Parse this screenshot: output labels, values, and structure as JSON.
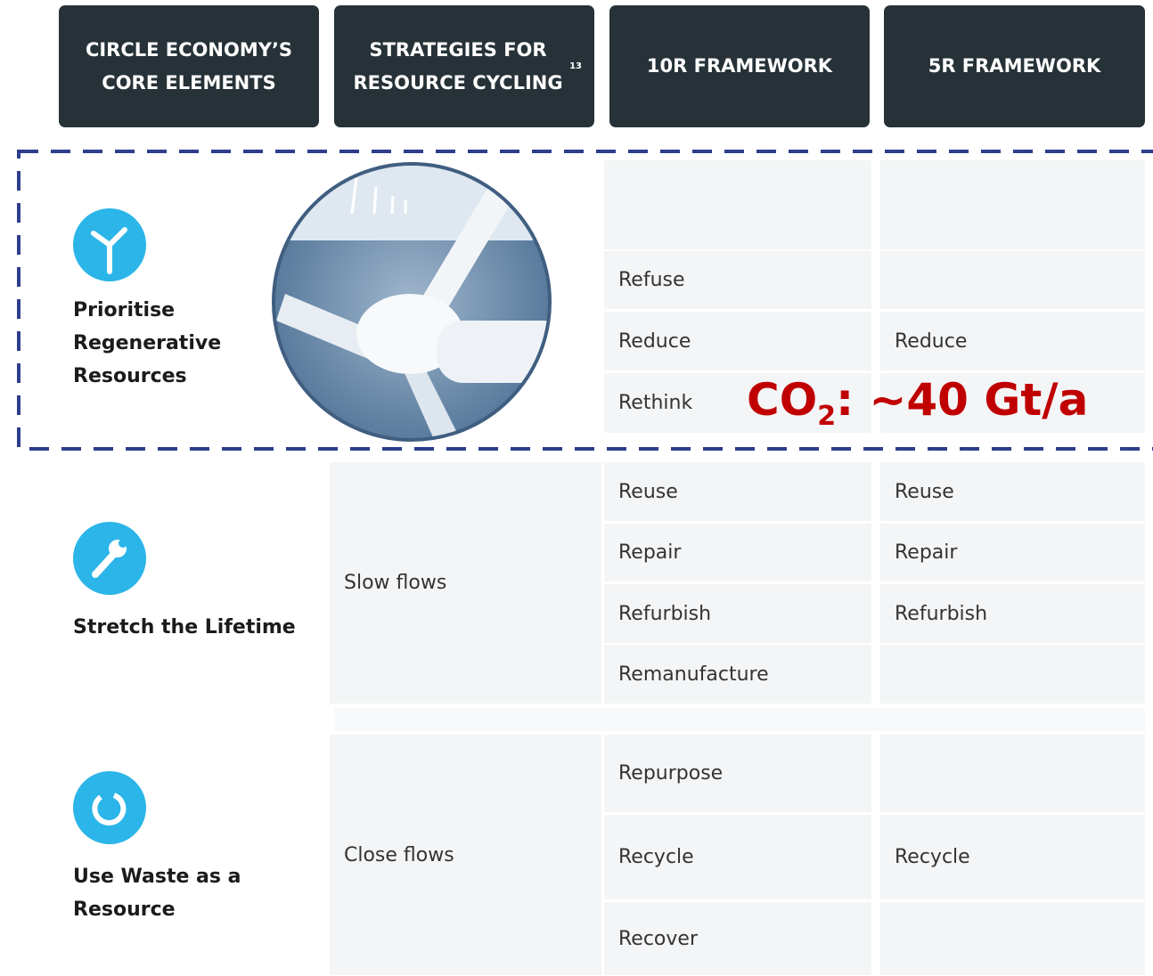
{
  "header": [
    {
      "text": "CIRCLE ECONOMY’S CORE ELEMENTS"
    },
    {
      "text": "STRATEGIES FOR RESOURCE CYCLING",
      "note": "13"
    },
    {
      "text": "10R FRAMEWORK"
    },
    {
      "text": "5R FRAMEWORK"
    }
  ],
  "sections": [
    {
      "element": "Prioritise Regenerative Resources",
      "strategy": null,
      "r10": [
        null,
        "Refuse",
        "Reduce",
        "Rethink"
      ],
      "r5": [
        null,
        null,
        "Reduce",
        null
      ]
    },
    {
      "element": "Stretch the Lifetime",
      "strategy": "Slow flows",
      "r10": [
        "Reuse",
        "Repair",
        "Refurbish",
        "Remanufacture"
      ],
      "r5": [
        "Reuse",
        "Repair",
        "Refurbish",
        null
      ]
    },
    {
      "element": "Use Waste as a Resource",
      "strategy": "Close flows",
      "r10": [
        "Repurpose",
        "Recycle",
        "Recover"
      ],
      "r5": [
        null,
        "Recycle",
        null
      ]
    }
  ],
  "annotation": {
    "text": "CO",
    "subscript": "2",
    "tail": ": ~40 Gt/a"
  }
}
